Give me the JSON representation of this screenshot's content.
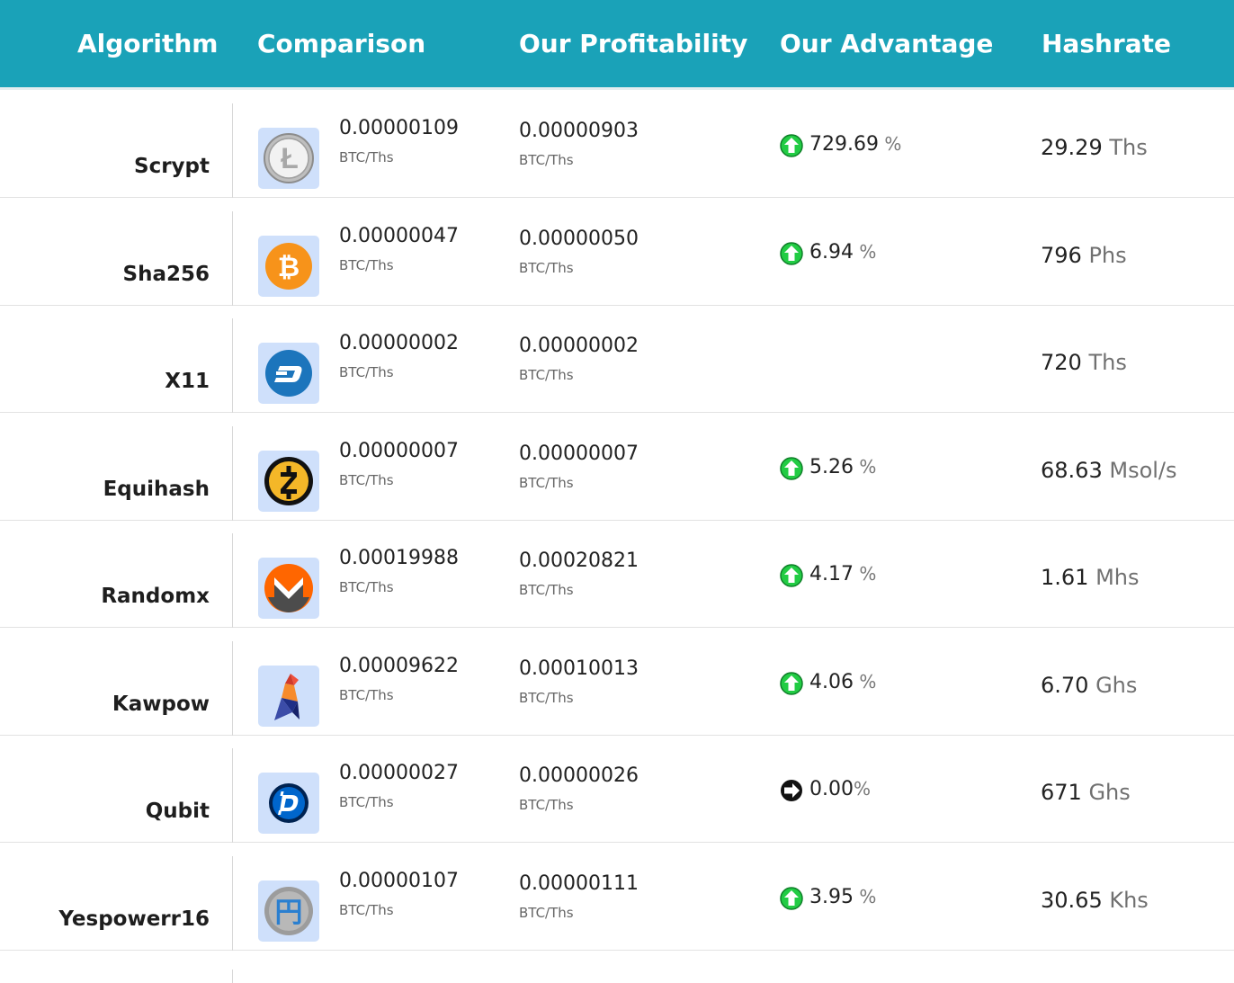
{
  "header": {
    "algorithm": "Algorithm",
    "comparison": "Comparison",
    "profitability": "Our Profitability",
    "advantage": "Our Advantage",
    "hashrate": "Hashrate"
  },
  "colors": {
    "header_bg": "#1aa2b8",
    "up_arrow": "#22cc44",
    "neutral_arrow": "#111111"
  },
  "rows": [
    {
      "algorithm": "Scrypt",
      "coin_icon": "litecoin-icon",
      "comparison": "0.00000109",
      "comparison_unit": "BTC/Ths",
      "profitability": "0.00000903",
      "profitability_unit": "BTC/Ths",
      "advantage_icon": "arrow-up-icon",
      "advantage": "729.69",
      "advantage_pct": " %",
      "hashrate": "29.29",
      "hashrate_unit": "Ths"
    },
    {
      "algorithm": "Sha256",
      "coin_icon": "bitcoin-icon",
      "comparison": "0.00000047",
      "comparison_unit": "BTC/Ths",
      "profitability": "0.00000050",
      "profitability_unit": "BTC/Ths",
      "advantage_icon": "arrow-up-icon",
      "advantage": "6.94",
      "advantage_pct": " %",
      "hashrate": "796",
      "hashrate_unit": "Phs"
    },
    {
      "algorithm": "X11",
      "coin_icon": "dash-icon",
      "comparison": "0.00000002",
      "comparison_unit": "BTC/Ths",
      "profitability": "0.00000002",
      "profitability_unit": "BTC/Ths",
      "advantage_icon": "",
      "advantage": "",
      "advantage_pct": "",
      "hashrate": "720",
      "hashrate_unit": "Ths"
    },
    {
      "algorithm": "Equihash",
      "coin_icon": "zcash-icon",
      "comparison": "0.00000007",
      "comparison_unit": "BTC/Ths",
      "profitability": "0.00000007",
      "profitability_unit": "BTC/Ths",
      "advantage_icon": "arrow-up-icon",
      "advantage": "5.26",
      "advantage_pct": " %",
      "hashrate": "68.63",
      "hashrate_unit": "Msol/s"
    },
    {
      "algorithm": "Randomx",
      "coin_icon": "monero-icon",
      "comparison": "0.00019988",
      "comparison_unit": "BTC/Ths",
      "profitability": "0.00020821",
      "profitability_unit": "BTC/Ths",
      "advantage_icon": "arrow-up-icon",
      "advantage": "4.17",
      "advantage_pct": " %",
      "hashrate": "1.61",
      "hashrate_unit": "Mhs"
    },
    {
      "algorithm": "Kawpow",
      "coin_icon": "ravencoin-icon",
      "comparison": "0.00009622",
      "comparison_unit": "BTC/Ths",
      "profitability": "0.00010013",
      "profitability_unit": "BTC/Ths",
      "advantage_icon": "arrow-up-icon",
      "advantage": "4.06",
      "advantage_pct": " %",
      "hashrate": "6.70",
      "hashrate_unit": "Ghs"
    },
    {
      "algorithm": "Qubit",
      "coin_icon": "digibyte-icon",
      "comparison": "0.00000027",
      "comparison_unit": "BTC/Ths",
      "profitability": "0.00000026",
      "profitability_unit": "BTC/Ths",
      "advantage_icon": "arrow-right-icon",
      "advantage": "0.00",
      "advantage_pct": "%",
      "hashrate": "671",
      "hashrate_unit": "Ghs"
    },
    {
      "algorithm": "Yespowerr16",
      "coin_icon": "yenten-icon",
      "comparison": "0.00000107",
      "comparison_unit": "BTC/Ths",
      "profitability": "0.00000111",
      "profitability_unit": "BTC/Ths",
      "advantage_icon": "arrow-up-icon",
      "advantage": "3.95",
      "advantage_pct": " %",
      "hashrate": "30.65",
      "hashrate_unit": "Khs"
    }
  ]
}
